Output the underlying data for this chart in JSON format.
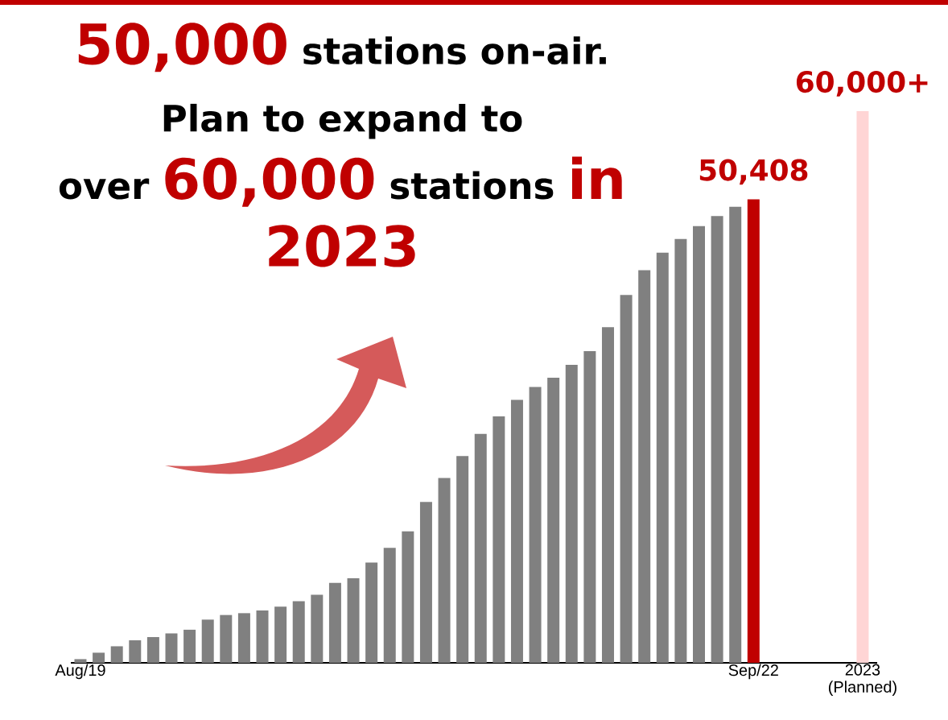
{
  "chart_data": {
    "type": "bar",
    "title": "**50,000** stations on-air. Plan to expand to over **60,000** stations **in 2023**",
    "categories": [
      "Aug/19",
      null,
      null,
      null,
      null,
      null,
      null,
      null,
      null,
      null,
      null,
      null,
      null,
      null,
      null,
      null,
      null,
      null,
      null,
      null,
      null,
      null,
      null,
      null,
      null,
      null,
      null,
      null,
      null,
      null,
      null,
      null,
      null,
      null,
      null,
      null,
      null,
      "Sep/22",
      null,
      null,
      null,
      null,
      null,
      "2023 (Planned)"
    ],
    "values": [
      400,
      1100,
      1800,
      2450,
      2800,
      3200,
      3600,
      4700,
      5200,
      5400,
      5700,
      6100,
      6700,
      7400,
      8700,
      9200,
      10900,
      12500,
      14300,
      17500,
      20100,
      22500,
      24900,
      26800,
      28600,
      30000,
      31000,
      32400,
      33900,
      36500,
      40000,
      42700,
      44600,
      46100,
      47500,
      48600,
      49600,
      50408,
      null,
      null,
      null,
      null,
      null,
      60000
    ],
    "colors": [
      "#808080",
      "#808080",
      "#808080",
      "#808080",
      "#808080",
      "#808080",
      "#808080",
      "#808080",
      "#808080",
      "#808080",
      "#808080",
      "#808080",
      "#808080",
      "#808080",
      "#808080",
      "#808080",
      "#808080",
      "#808080",
      "#808080",
      "#808080",
      "#808080",
      "#808080",
      "#808080",
      "#808080",
      "#808080",
      "#808080",
      "#808080",
      "#808080",
      "#808080",
      "#808080",
      "#808080",
      "#808080",
      "#808080",
      "#808080",
      "#808080",
      "#808080",
      "#808080",
      "#c00000",
      null,
      null,
      null,
      null,
      null,
      "#ffd5d5"
    ],
    "value_labels": [
      null,
      null,
      null,
      null,
      null,
      null,
      null,
      null,
      null,
      null,
      null,
      null,
      null,
      null,
      null,
      null,
      null,
      null,
      null,
      null,
      null,
      null,
      null,
      null,
      null,
      null,
      null,
      null,
      null,
      null,
      null,
      null,
      null,
      null,
      null,
      null,
      null,
      "50,408",
      null,
      null,
      null,
      null,
      null,
      "60,000+"
    ]
  }
}
